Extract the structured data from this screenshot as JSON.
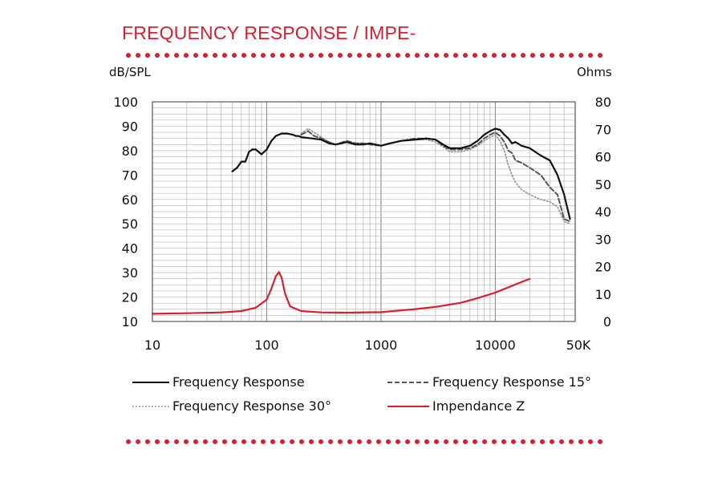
{
  "header": {
    "title": "FREQUENCY RESPONSE / IMPE-"
  },
  "colors": {
    "accent": "#d6202f",
    "frequency_response": "#111111",
    "fr15": "#555555",
    "fr30": "#9a9a9a",
    "impedance": "#d6202f",
    "grid": "#bdbdbd"
  },
  "chart_data": {
    "type": "line",
    "x_scale": "log",
    "grid": true,
    "legend_position": "bottom",
    "xlim": [
      10,
      50000
    ],
    "ylim_left": [
      10,
      100
    ],
    "ylim_right": [
      0,
      80
    ],
    "ylabel_left": "dB/SPL",
    "ylabel_right": "Ohms",
    "x_ticks": [
      {
        "value": 10,
        "label": "10"
      },
      {
        "value": 100,
        "label": "100"
      },
      {
        "value": 1000,
        "label": "1000"
      },
      {
        "value": 10000,
        "label": "10000"
      },
      {
        "value": 50000,
        "label": "50K"
      }
    ],
    "y_left_ticks": [
      10,
      20,
      30,
      40,
      50,
      60,
      70,
      80,
      90,
      100
    ],
    "y_right_ticks": [
      0,
      10,
      20,
      30,
      40,
      50,
      60,
      70,
      80
    ],
    "series": [
      {
        "name": "Frequency Response",
        "axis": "left",
        "style": "solid",
        "x": [
          50,
          55,
          60,
          65,
          70,
          75,
          80,
          90,
          100,
          110,
          120,
          135,
          150,
          170,
          180,
          190,
          200,
          250,
          300,
          350,
          400,
          450,
          500,
          600,
          700,
          800,
          900,
          1000,
          1200,
          1500,
          2000,
          2500,
          3000,
          3500,
          4000,
          5000,
          6000,
          7000,
          8000,
          9000,
          10000,
          11000,
          12000,
          13000,
          14000,
          15000,
          17000,
          20000,
          25000,
          30000,
          35000,
          40000,
          45000
        ],
        "y": [
          71.5,
          73,
          75.5,
          75.5,
          79.5,
          80.5,
          80.5,
          78.5,
          80.5,
          84,
          86,
          87,
          87,
          86.5,
          86,
          86,
          85.5,
          85,
          84.5,
          83,
          82.5,
          83,
          83.5,
          82.5,
          82.5,
          83,
          82.5,
          82,
          83,
          84,
          84.5,
          85,
          84.5,
          82.5,
          81,
          81,
          82,
          84,
          86.5,
          88,
          89,
          88.5,
          86.5,
          85,
          83,
          83.5,
          82,
          81,
          78,
          76,
          70,
          62,
          52
        ]
      },
      {
        "name": "Frequency Response 15°",
        "axis": "left",
        "style": "dashed",
        "x": [
          200,
          230,
          260,
          300,
          350,
          400,
          500,
          600,
          700,
          800,
          1000,
          1200,
          1500,
          2000,
          2500,
          3000,
          3500,
          4000,
          5000,
          6000,
          7000,
          8000,
          9000,
          10000,
          11000,
          12000,
          13000,
          14000,
          15000,
          17000,
          20000,
          25000,
          30000,
          35000,
          40000,
          45000
        ],
        "y": [
          86.5,
          88,
          86,
          85,
          83.5,
          82.5,
          84,
          83,
          83,
          82.5,
          82,
          83,
          84,
          85,
          85,
          84.5,
          82,
          80.5,
          80.5,
          81,
          82.5,
          85,
          86.5,
          87.5,
          86,
          83.5,
          80,
          79,
          76,
          75,
          73,
          70,
          65,
          62,
          52,
          51
        ]
      },
      {
        "name": "Frequency Response 30°",
        "axis": "left",
        "style": "dotted",
        "x": [
          200,
          230,
          260,
          300,
          350,
          400,
          500,
          600,
          700,
          800,
          1000,
          1200,
          1500,
          2000,
          2500,
          3000,
          3500,
          4000,
          5000,
          6000,
          7000,
          8000,
          9000,
          10000,
          11000,
          12000,
          13000,
          14000,
          15000,
          17000,
          20000,
          25000,
          30000,
          35000,
          40000,
          45000
        ],
        "y": [
          87,
          89,
          87.5,
          85.5,
          83.5,
          82.5,
          83.5,
          83,
          83,
          82.5,
          82,
          83,
          84,
          84.5,
          84.5,
          83.5,
          81.5,
          79.5,
          79.5,
          80.5,
          82,
          84,
          85.5,
          86.5,
          84,
          80,
          74,
          70,
          67,
          64,
          62,
          60,
          59,
          57,
          51,
          50
        ]
      },
      {
        "name": "Impendance Z",
        "axis": "right",
        "style": "solid",
        "x": [
          10,
          20,
          40,
          60,
          80,
          100,
          110,
          120,
          128,
          135,
          145,
          160,
          200,
          300,
          500,
          1000,
          2000,
          3000,
          5000,
          7000,
          10000,
          15000,
          20000
        ],
        "y": [
          2.8,
          3.0,
          3.3,
          3.8,
          5.0,
          8.0,
          12,
          16.5,
          18,
          16,
          10,
          5.5,
          3.8,
          3.3,
          3.2,
          3.4,
          4.5,
          5.3,
          6.8,
          8.5,
          10.5,
          13.5,
          15.5
        ]
      }
    ]
  },
  "legend": {
    "fr": "Frequency Response",
    "fr15": "Frequency Response 15°",
    "fr30": "Frequency Response 30°",
    "z": "Impendance Z"
  }
}
